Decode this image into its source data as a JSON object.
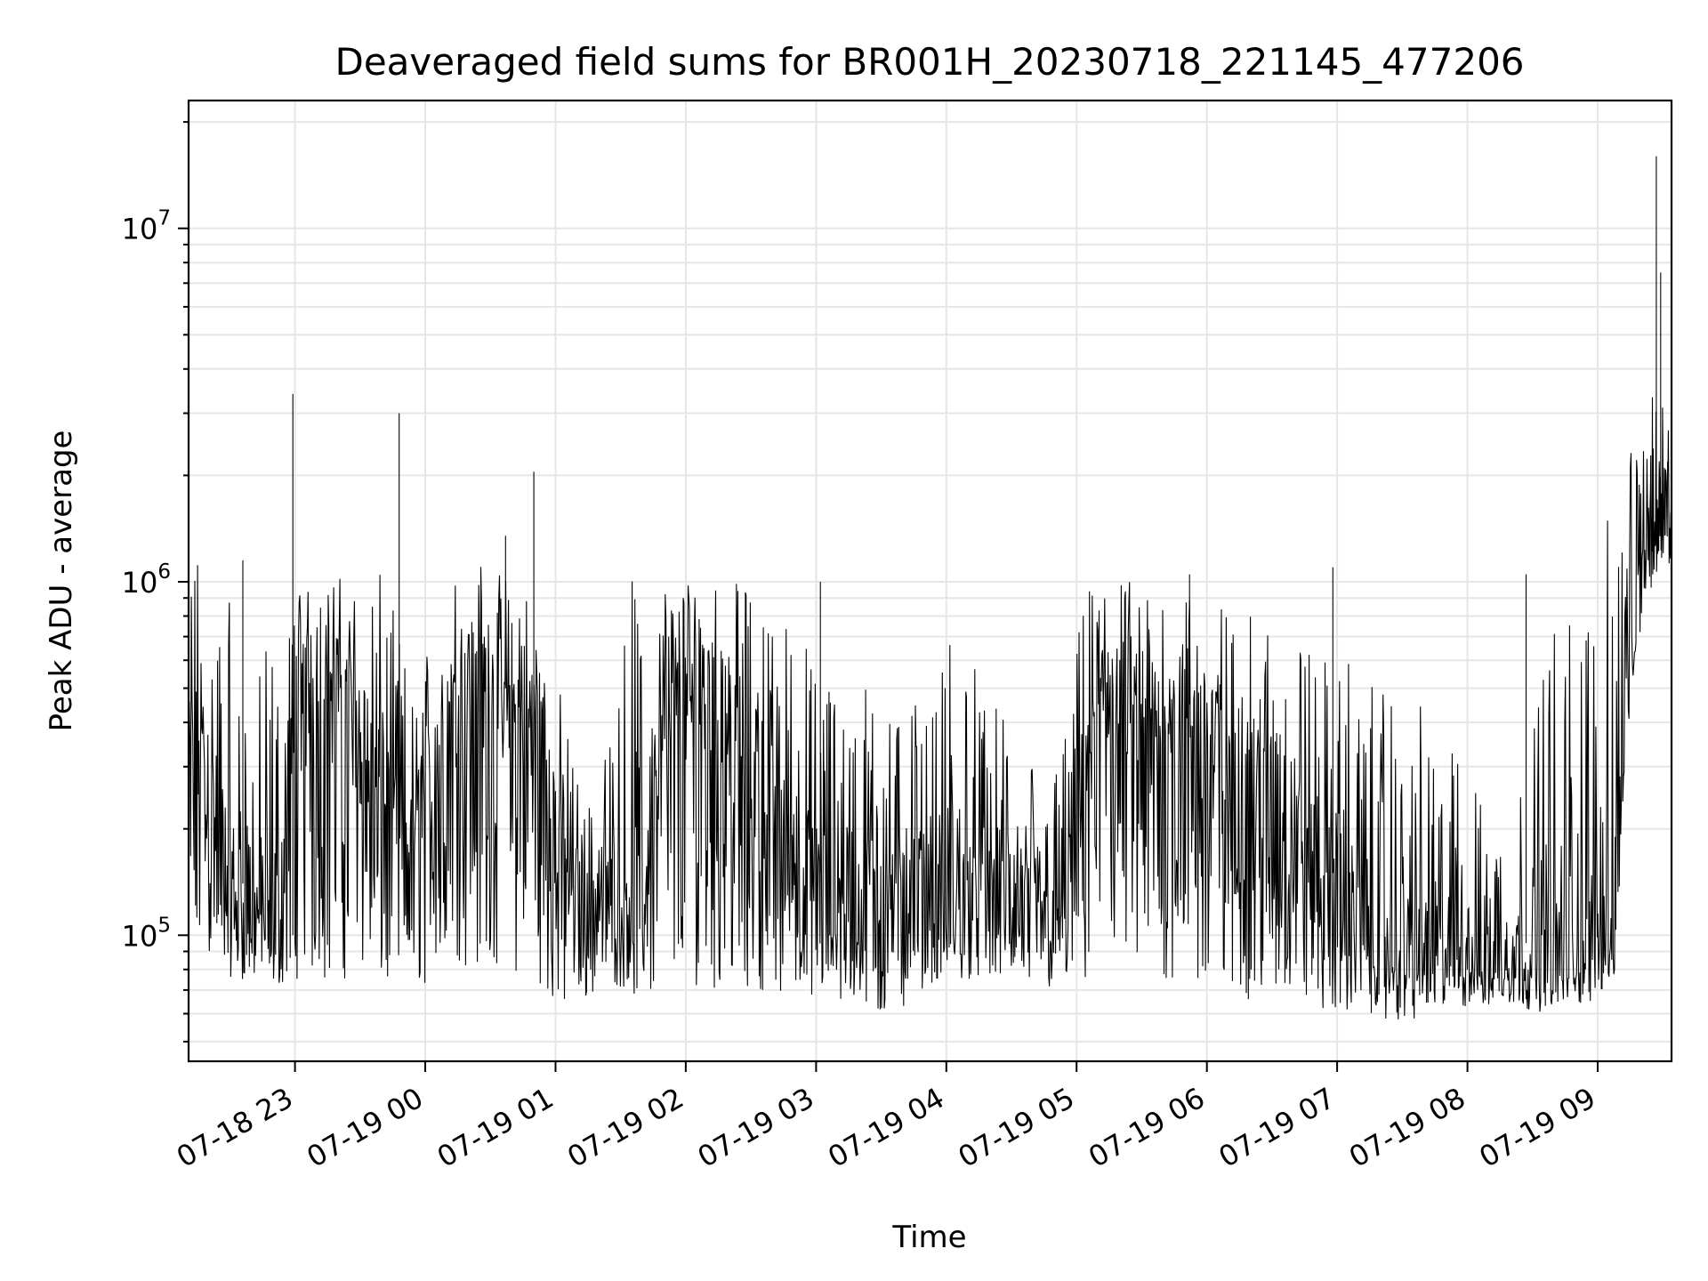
{
  "chart_data": {
    "type": "line",
    "title": "Deaveraged field sums for BR001H_20230718_221145_477206",
    "xlabel": "Time",
    "ylabel": "Peak ADU - average",
    "yscale": "log",
    "grid": true,
    "xlim": [
      "2023-07-18 22:11",
      "2023-07-19 09:34"
    ],
    "ylim": [
      44000,
      23000000
    ],
    "y_ticks": [
      {
        "value": 100000,
        "label": "10^5"
      },
      {
        "value": 1000000,
        "label": "10^6"
      },
      {
        "value": 10000000,
        "label": "10^7"
      }
    ],
    "x_ticks": [
      {
        "value": "2023-07-18 23:00",
        "label": "07-18 23"
      },
      {
        "value": "2023-07-19 00:00",
        "label": "07-19 00"
      },
      {
        "value": "2023-07-19 01:00",
        "label": "07-19 01"
      },
      {
        "value": "2023-07-19 02:00",
        "label": "07-19 02"
      },
      {
        "value": "2023-07-19 03:00",
        "label": "07-19 03"
      },
      {
        "value": "2023-07-19 04:00",
        "label": "07-19 04"
      },
      {
        "value": "2023-07-19 05:00",
        "label": "07-19 05"
      },
      {
        "value": "2023-07-19 06:00",
        "label": "07-19 06"
      },
      {
        "value": "2023-07-19 07:00",
        "label": "07-19 07"
      },
      {
        "value": "2023-07-19 08:00",
        "label": "07-19 08"
      },
      {
        "value": "2023-07-19 09:00",
        "label": "07-19 09"
      }
    ],
    "series": [
      {
        "color": "#000000",
        "x": [
          "2023-07-18 22:11",
          "2023-07-18 22:18",
          "2023-07-18 22:25",
          "2023-07-18 22:32",
          "2023-07-18 22:39",
          "2023-07-18 22:46",
          "2023-07-18 22:53",
          "2023-07-18 23:00",
          "2023-07-18 23:07",
          "2023-07-18 23:14",
          "2023-07-18 23:21",
          "2023-07-18 23:28",
          "2023-07-18 23:35",
          "2023-07-18 23:42",
          "2023-07-18 23:49",
          "2023-07-18 23:56",
          "2023-07-19 00:03",
          "2023-07-19 00:10",
          "2023-07-19 00:17",
          "2023-07-19 00:24",
          "2023-07-19 00:31",
          "2023-07-19 00:38",
          "2023-07-19 00:45",
          "2023-07-19 00:52",
          "2023-07-19 00:59",
          "2023-07-19 01:06",
          "2023-07-19 01:13",
          "2023-07-19 01:20",
          "2023-07-19 01:27",
          "2023-07-19 01:34",
          "2023-07-19 01:41",
          "2023-07-19 01:48",
          "2023-07-19 01:55",
          "2023-07-19 02:02",
          "2023-07-19 02:09",
          "2023-07-19 02:16",
          "2023-07-19 02:23",
          "2023-07-19 02:30",
          "2023-07-19 02:37",
          "2023-07-19 02:44",
          "2023-07-19 02:51",
          "2023-07-19 02:58",
          "2023-07-19 03:05",
          "2023-07-19 03:12",
          "2023-07-19 03:19",
          "2023-07-19 03:26",
          "2023-07-19 03:33",
          "2023-07-19 03:40",
          "2023-07-19 03:47",
          "2023-07-19 03:54",
          "2023-07-19 04:01",
          "2023-07-19 04:08",
          "2023-07-19 04:15",
          "2023-07-19 04:22",
          "2023-07-19 04:29",
          "2023-07-19 04:36",
          "2023-07-19 04:43",
          "2023-07-19 04:50",
          "2023-07-19 04:57",
          "2023-07-19 05:04",
          "2023-07-19 05:11",
          "2023-07-19 05:18",
          "2023-07-19 05:25",
          "2023-07-19 05:32",
          "2023-07-19 05:39",
          "2023-07-19 05:46",
          "2023-07-19 05:53",
          "2023-07-19 06:00",
          "2023-07-19 06:07",
          "2023-07-19 06:14",
          "2023-07-19 06:21",
          "2023-07-19 06:28",
          "2023-07-19 06:35",
          "2023-07-19 06:42",
          "2023-07-19 06:49",
          "2023-07-19 06:56",
          "2023-07-19 07:03",
          "2023-07-19 07:10",
          "2023-07-19 07:17",
          "2023-07-19 07:24",
          "2023-07-19 07:31",
          "2023-07-19 07:38",
          "2023-07-19 07:45",
          "2023-07-19 07:52",
          "2023-07-19 07:59",
          "2023-07-19 08:06",
          "2023-07-19 08:13",
          "2023-07-19 08:20",
          "2023-07-19 08:27",
          "2023-07-19 08:34",
          "2023-07-19 08:41",
          "2023-07-19 08:48",
          "2023-07-19 08:55",
          "2023-07-19 09:02",
          "2023-07-19 09:09",
          "2023-07-19 09:16",
          "2023-07-19 09:23",
          "2023-07-19 09:27",
          "2023-07-19 09:30",
          "2023-07-19 09:34"
        ],
        "low": [
          90000,
          85000,
          80000,
          75000,
          75000,
          75000,
          72000,
          75000,
          75000,
          72000,
          75000,
          75000,
          75000,
          70000,
          70000,
          72000,
          72000,
          75000,
          80000,
          80000,
          80000,
          78000,
          75000,
          75000,
          60000,
          62000,
          65000,
          70000,
          72000,
          70000,
          62000,
          65000,
          68000,
          70000,
          72000,
          70000,
          72000,
          70000,
          70000,
          68000,
          68000,
          65000,
          65000,
          62000,
          62000,
          60000,
          58000,
          60000,
          70000,
          72000,
          75000,
          75000,
          75000,
          75000,
          75000,
          72000,
          70000,
          70000,
          68000,
          68000,
          70000,
          72000,
          72000,
          72000,
          70000,
          72000,
          70000,
          70000,
          68000,
          65000,
          65000,
          65000,
          65000,
          62000,
          62000,
          60000,
          60000,
          62000,
          58000,
          58000,
          56000,
          58000,
          60000,
          60000,
          62000,
          62000,
          62000,
          62000,
          62000,
          60000,
          62000,
          62000,
          65000,
          70000,
          75000,
          500000,
          900000,
          1000000,
          1200000,
          1100000
        ],
        "y": [
          300000,
          250000,
          200000,
          140000,
          130000,
          120000,
          100000,
          350000,
          500000,
          500000,
          450000,
          400000,
          300000,
          250000,
          200000,
          180000,
          300000,
          400000,
          500000,
          550000,
          500000,
          450000,
          450000,
          380000,
          200000,
          150000,
          130000,
          140000,
          140000,
          130000,
          150000,
          300000,
          400000,
          500000,
          500000,
          450000,
          350000,
          300000,
          250000,
          200000,
          180000,
          150000,
          150000,
          140000,
          140000,
          140000,
          130000,
          140000,
          150000,
          130000,
          120000,
          130000,
          150000,
          140000,
          130000,
          120000,
          110000,
          110000,
          140000,
          300000,
          500000,
          500000,
          450000,
          400000,
          350000,
          450000,
          400000,
          350000,
          300000,
          300000,
          280000,
          250000,
          250000,
          200000,
          180000,
          150000,
          130000,
          120000,
          110000,
          100000,
          100000,
          95000,
          95000,
          95000,
          95000,
          90000,
          90000,
          90000,
          95000,
          95000,
          95000,
          100000,
          100000,
          110000,
          150000,
          600000,
          1400000,
          1600000,
          2000000,
          1300000
        ],
        "high": [
          1050000,
          1600000,
          1150000,
          750000,
          500000,
          650000,
          600000,
          1050000,
          1150000,
          1100000,
          1050000,
          1050000,
          1050000,
          1050000,
          650000,
          550000,
          800000,
          1050000,
          1100000,
          1150000,
          1100000,
          1050000,
          1050000,
          850000,
          600000,
          400000,
          250000,
          280000,
          400000,
          1050000,
          1000000,
          1050000,
          1050000,
          1050000,
          1050000,
          1050000,
          1000000,
          950000,
          900000,
          850000,
          700000,
          700000,
          600000,
          550000,
          550000,
          500000,
          500000,
          450000,
          450000,
          420000,
          750000,
          750000,
          550000,
          450000,
          400000,
          350000,
          350000,
          300000,
          450000,
          950000,
          1050000,
          1050000,
          1050000,
          1050000,
          1050000,
          1000000,
          950000,
          900000,
          900000,
          800000,
          800000,
          800000,
          800000,
          750000,
          700000,
          650000,
          650000,
          550000,
          500000,
          500000,
          450000,
          450000,
          400000,
          350000,
          300000,
          250000,
          220000,
          220000,
          300000,
          750000,
          800000,
          850000,
          850000,
          1200000,
          2000000,
          2600000,
          3200000,
          3500000,
          3500000,
          2600000
        ],
        "spikes": [
          {
            "x": "2023-07-18 22:36",
            "y": 1150000
          },
          {
            "x": "2023-07-18 22:59",
            "y": 3400000
          },
          {
            "x": "2023-07-18 23:48",
            "y": 3000000
          },
          {
            "x": "2023-07-19 00:37",
            "y": 1350000
          },
          {
            "x": "2023-07-19 00:50",
            "y": 2050000
          },
          {
            "x": "2023-07-19 03:02",
            "y": 1000000
          },
          {
            "x": "2023-07-19 05:52",
            "y": 1050000
          },
          {
            "x": "2023-07-19 06:58",
            "y": 1100000
          },
          {
            "x": "2023-07-19 08:27",
            "y": 1050000
          },
          {
            "x": "2023-07-19 09:27",
            "y": 16000000
          },
          {
            "x": "2023-07-19 09:29",
            "y": 7500000
          }
        ]
      }
    ]
  }
}
